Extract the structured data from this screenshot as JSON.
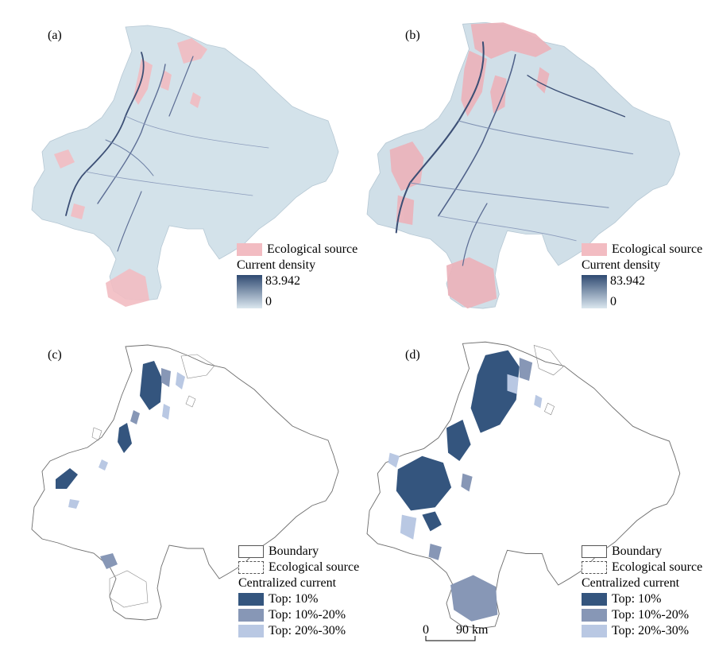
{
  "panels": [
    {
      "label": "(a)"
    },
    {
      "label": "(b)"
    },
    {
      "label": "(c)"
    },
    {
      "label": "(d)"
    }
  ],
  "legend_density": {
    "source_label": "Ecological source",
    "title": "Current density",
    "max": "83.942",
    "min": "0"
  },
  "legend_centralized": {
    "boundary_label": "Boundary",
    "source_label": "Ecological source",
    "title": "Centralized current",
    "items": [
      {
        "label": "Top: 10%",
        "color": "#34557e"
      },
      {
        "label": "Top: 10%-20%",
        "color": "#8797b6"
      },
      {
        "label": "Top: 20%-30%",
        "color": "#b9c8e3"
      }
    ]
  },
  "scale_bar": {
    "zero": "0",
    "distance": "90 km"
  },
  "colors": {
    "land_fill": "#d3e2ea",
    "source_fill": "#f2bcc2",
    "corridor_dark": "#3c4f75",
    "corridor_mid": "#6f82a6",
    "boundary": "#6e6e6e"
  }
}
